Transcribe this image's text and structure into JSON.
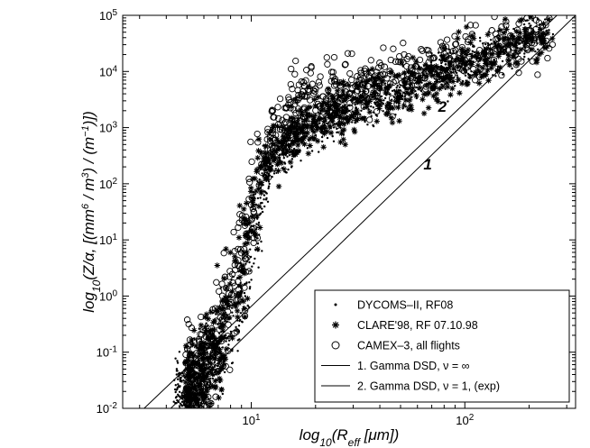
{
  "chart_data": {
    "type": "scatter",
    "x_scale": "log",
    "y_scale": "log",
    "xlim": [
      2.5,
      330
    ],
    "ylim": [
      0.01,
      100000
    ],
    "x_ticks": [
      {
        "value": 10,
        "base": "10",
        "exp": "1"
      },
      {
        "value": 100,
        "base": "10",
        "exp": "2"
      }
    ],
    "y_ticks": [
      {
        "value": 0.01,
        "base": "10",
        "exp": "-2"
      },
      {
        "value": 0.1,
        "base": "10",
        "exp": "-1"
      },
      {
        "value": 1,
        "base": "10",
        "exp": "0"
      },
      {
        "value": 10,
        "base": "10",
        "exp": "1"
      },
      {
        "value": 100,
        "base": "10",
        "exp": "2"
      },
      {
        "value": 1000,
        "base": "10",
        "exp": "3"
      },
      {
        "value": 10000,
        "base": "10",
        "exp": "4"
      },
      {
        "value": 100000,
        "base": "10",
        "exp": "5"
      }
    ],
    "xlabel": "log10(Reff [μm])",
    "xlabel_parts": {
      "log": "log",
      "log_sub": "10",
      "open": "(R",
      "sub": "eff",
      "close": " [μm])"
    },
    "ylabel": "log10(Z/α, [(mm6 / m3) / (m−1)])",
    "ylabel_parts": {
      "log": "log",
      "log_sub": "10",
      "p1": "(Z/α, [(mm",
      "s1": "6",
      "p2": " / m",
      "s2": "3",
      "p3": ") / (m",
      "s3": "−1",
      "p4": ")])"
    },
    "grid": false,
    "legend_position": "bottom-right",
    "legend": [
      {
        "marker": "dot",
        "label": "DYCOMS–II, RF08"
      },
      {
        "marker": "star",
        "label": "CLARE'98, RF 07.10.98"
      },
      {
        "marker": "circle",
        "label": "CAMEX–3, all flights"
      },
      {
        "marker": "line",
        "label": "1. Gamma DSD, ν = ∞"
      },
      {
        "marker": "line",
        "label": "2. Gamma DSD, ν = 1, (exp)"
      }
    ],
    "lines": [
      {
        "label": "1",
        "x": [
          4.2,
          330
        ],
        "y": [
          0.01,
          100000
        ]
      },
      {
        "label": "2",
        "x": [
          3.15,
          270
        ],
        "y": [
          0.01,
          100000
        ]
      }
    ],
    "annotations": [
      {
        "text": "1",
        "x": 64,
        "y": 180
      },
      {
        "text": "2",
        "x": 75,
        "y": 1900
      }
    ],
    "series_trend": {
      "dycoms": {
        "x": [
          4.5,
          5,
          6,
          7,
          8,
          9,
          10,
          11,
          12,
          14,
          17,
          20,
          30,
          50,
          80,
          150,
          250
        ],
        "y": [
          0.015,
          0.02,
          0.05,
          0.1,
          0.3,
          1,
          5,
          30,
          150,
          400,
          800,
          1100,
          2500,
          5000,
          10000,
          25000,
          50000
        ]
      },
      "clare": {
        "x": [
          5,
          6,
          7,
          8,
          9,
          10,
          11,
          12,
          14,
          17,
          20,
          30,
          50,
          80,
          150,
          250
        ],
        "y": [
          0.015,
          0.05,
          0.15,
          0.6,
          3,
          20,
          100,
          300,
          600,
          900,
          1200,
          2500,
          5000,
          10000,
          25000,
          50000
        ]
      },
      "camex": {
        "x": [
          5,
          6,
          7,
          8,
          9,
          10,
          11,
          13,
          16,
          20,
          30,
          50,
          80,
          150,
          250
        ],
        "y": [
          0.015,
          0.05,
          0.2,
          1,
          5,
          30,
          200,
          1000,
          3000,
          4000,
          5000,
          8000,
          15000,
          30000,
          60000
        ]
      }
    }
  }
}
